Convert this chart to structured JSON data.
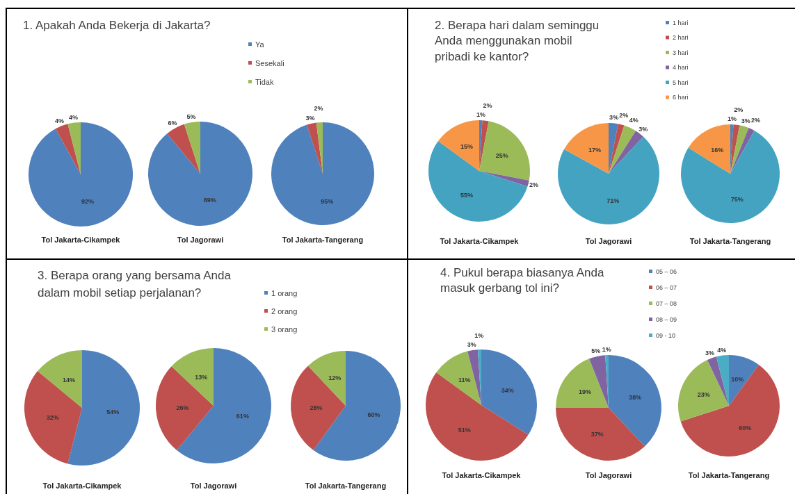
{
  "chart_data": [
    {
      "type": "pie",
      "title": "1. Apakah Anda Bekerja di Jakarta?",
      "categories": [
        "Ya",
        "Sesekali",
        "Tidak"
      ],
      "colors": [
        "#4f81bd",
        "#c0504d",
        "#9bbb59"
      ],
      "legend": "top right",
      "series": [
        {
          "name": "Tol Jakarta-Cikampek",
          "values": [
            92,
            4,
            4
          ],
          "value_labels": [
            "92%",
            "4%",
            "4%"
          ]
        },
        {
          "name": "Tol Jagorawi",
          "values": [
            89,
            6,
            5
          ],
          "value_labels": [
            "89%",
            "6%",
            "5%"
          ]
        },
        {
          "name": "Tol Jakarta-Tangerang",
          "values": [
            95,
            3,
            2
          ],
          "value_labels": [
            "95%",
            "3%",
            "2%"
          ]
        }
      ]
    },
    {
      "type": "pie",
      "title": "2. Berapa hari dalam seminggu Anda menggunakan mobil pribadi ke kantor?",
      "categories": [
        "1 hari",
        "2 hari",
        "3 hari",
        "4 hari",
        "5 hari",
        "6 hari"
      ],
      "colors": [
        "#4f81bd",
        "#c0504d",
        "#9bbb59",
        "#8064a2",
        "#45a3c2",
        "#f79646"
      ],
      "legend": "top right",
      "series": [
        {
          "name": "Tol Jakarta-Cikampek",
          "values": [
            1,
            2,
            25,
            2,
            55,
            15
          ],
          "value_labels": [
            "1%",
            "2%",
            "25%",
            "2%",
            "55%",
            "15%"
          ]
        },
        {
          "name": "Tol Jagorawi",
          "values": [
            3,
            2,
            4,
            3,
            71,
            17
          ],
          "value_labels": [
            "3%",
            "2%",
            "4%",
            "3%",
            "71%",
            "17%"
          ]
        },
        {
          "name": "Tol Jakarta-Tangerang",
          "values": [
            1,
            2,
            3,
            2,
            75,
            16
          ],
          "value_labels": [
            "1%",
            "2%",
            "3%",
            "2%",
            "75%",
            "16%"
          ]
        }
      ]
    },
    {
      "type": "pie",
      "title": "3. Berapa orang yang bersama Anda dalam mobil setiap perjalanan?",
      "categories": [
        "1 orang",
        "2 orang",
        "3 orang"
      ],
      "colors": [
        "#4f81bd",
        "#c0504d",
        "#9bbb59"
      ],
      "legend": "top right",
      "series": [
        {
          "name": "Tol Jakarta-Cikampek",
          "values": [
            54,
            32,
            14
          ],
          "value_labels": [
            "54%",
            "32%",
            "14%"
          ]
        },
        {
          "name": "Tol Jagorawi",
          "values": [
            61,
            26,
            13
          ],
          "value_labels": [
            "61%",
            "26%",
            "13%"
          ]
        },
        {
          "name": "Tol Jakarta-Tangerang",
          "values": [
            60,
            28,
            12
          ],
          "value_labels": [
            "60%",
            "28%",
            "12%"
          ]
        }
      ]
    },
    {
      "type": "pie",
      "title": "4. Pukul berapa biasanya Anda masuk gerbang tol ini?",
      "categories": [
        "05 – 06",
        "06 – 07",
        "07 – 08",
        "08 – 09",
        "09 - 10"
      ],
      "colors": [
        "#4f81bd",
        "#c0504d",
        "#9bbb59",
        "#8064a2",
        "#4bacc6"
      ],
      "legend": "top right",
      "series": [
        {
          "name": "Tol Jakarta-Cikampek",
          "values": [
            34,
            51,
            11,
            3,
            1
          ],
          "value_labels": [
            "34%",
            "51%",
            "11%",
            "3%",
            "1%"
          ]
        },
        {
          "name": "Tol Jagorawi",
          "values": [
            38,
            37,
            19,
            5,
            1
          ],
          "value_labels": [
            "38%",
            "37%",
            "19%",
            "5%",
            "1%"
          ]
        },
        {
          "name": "Tol Jakarta-Tangerang",
          "values": [
            10,
            60,
            23,
            3,
            4
          ],
          "value_labels": [
            "10%",
            "60%",
            "23%",
            "3%",
            "4%"
          ]
        }
      ]
    }
  ]
}
